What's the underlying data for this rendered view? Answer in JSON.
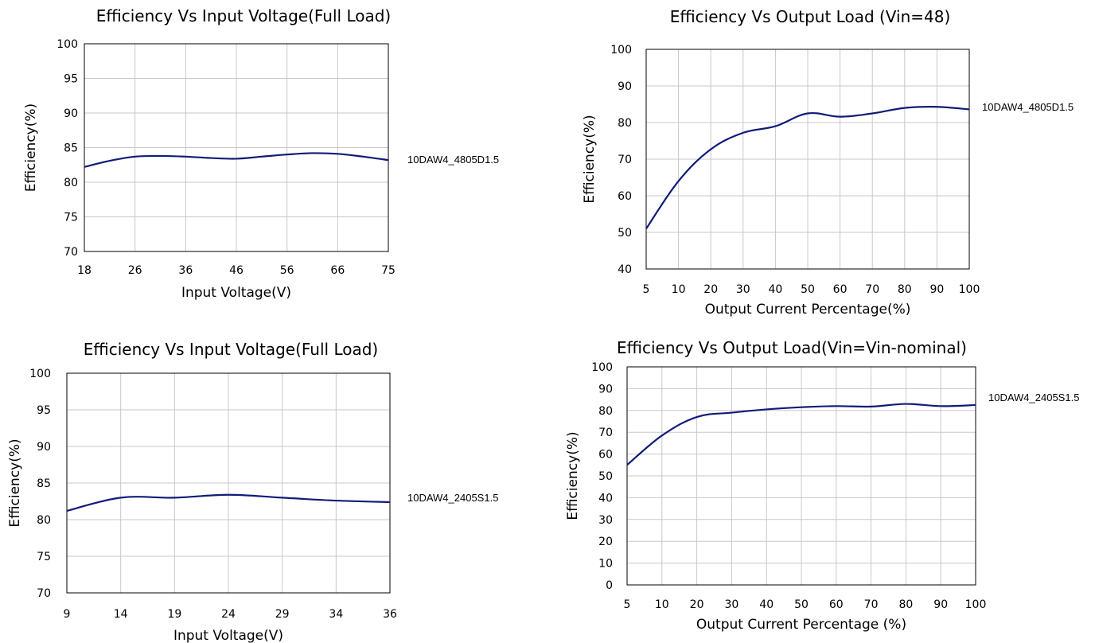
{
  "chart_data": [
    {
      "type": "line",
      "title": "Efficiency Vs Input Voltage(Full Load)",
      "xlabel": "Input Voltage(V)",
      "ylabel": "Efficiency(%)",
      "categories": [
        "18",
        "26",
        "36",
        "46",
        "56",
        "66",
        "75"
      ],
      "ylim": [
        70,
        100
      ],
      "yticks": [
        "70",
        "75",
        "80",
        "85",
        "90",
        "95",
        "100"
      ],
      "grid": true,
      "legend_placement": "right",
      "series": [
        {
          "name": "10DAW4_4805D1.5",
          "x": [
            0,
            0.5,
            1,
            1.5,
            2,
            2.5,
            3,
            3.5,
            4,
            4.5,
            5,
            5.5,
            6
          ],
          "values": [
            82.2,
            83.1,
            83.7,
            83.8,
            83.7,
            83.5,
            83.4,
            83.7,
            84.0,
            84.2,
            84.1,
            83.7,
            83.2
          ]
        }
      ],
      "color": "#101c78"
    },
    {
      "type": "line",
      "title": "Efficiency Vs Output Load (Vin=48)",
      "xlabel": "Output Current Percentage(%)",
      "ylabel": "Efficiency(%)",
      "categories": [
        "5",
        "10",
        "20",
        "30",
        "40",
        "50",
        "60",
        "70",
        "80",
        "90",
        "100"
      ],
      "ylim": [
        40,
        100
      ],
      "yticks": [
        "40",
        "50",
        "60",
        "70",
        "80",
        "90",
        "100"
      ],
      "grid": true,
      "legend_placement": "right",
      "series": [
        {
          "name": "10DAW4_4805D1.5",
          "x": [
            0,
            1,
            2,
            3,
            4,
            5,
            6,
            7,
            8,
            9,
            10
          ],
          "values": [
            51,
            64,
            72.7,
            77.2,
            79,
            82.5,
            81.6,
            82.5,
            84,
            84.3,
            83.6
          ]
        }
      ],
      "color": "#101c78"
    },
    {
      "type": "line",
      "title": "Efficiency Vs Input Voltage(Full Load)",
      "xlabel": "Input Voltage(V)",
      "ylabel": "Efficiency(%)",
      "categories": [
        "9",
        "14",
        "19",
        "24",
        "29",
        "34",
        "36"
      ],
      "ylim": [
        70,
        100
      ],
      "yticks": [
        "70",
        "75",
        "80",
        "85",
        "90",
        "95",
        "100"
      ],
      "grid": true,
      "legend_placement": "right",
      "series": [
        {
          "name": "10DAW4_2405S1.5",
          "x": [
            0,
            1,
            2,
            3,
            4,
            5,
            6
          ],
          "values": [
            81.2,
            83.0,
            83.0,
            83.4,
            83.0,
            82.6,
            82.4
          ]
        }
      ],
      "color": "#101c78"
    },
    {
      "type": "line",
      "title": "Efficiency Vs Output Load(Vin=Vin-nominal)",
      "xlabel": "Output Current  Percentage (%)",
      "ylabel": "Efficiency(%)",
      "categories": [
        "5",
        "10",
        "20",
        "30",
        "40",
        "50",
        "60",
        "70",
        "80",
        "90",
        "100"
      ],
      "ylim": [
        0,
        100
      ],
      "yticks": [
        "0",
        "10",
        "20",
        "30",
        "40",
        "50",
        "60",
        "70",
        "80",
        "90",
        "100"
      ],
      "grid": true,
      "legend_placement": "top-right",
      "series": [
        {
          "name": "10DAW4_2405S1.5",
          "x": [
            0,
            1,
            2,
            3,
            4,
            5,
            6,
            7,
            8,
            9,
            10
          ],
          "values": [
            55,
            68.5,
            77,
            79,
            80.5,
            81.5,
            82,
            81.8,
            83,
            82,
            82.5
          ]
        }
      ],
      "color": "#1f2f5e"
    }
  ]
}
